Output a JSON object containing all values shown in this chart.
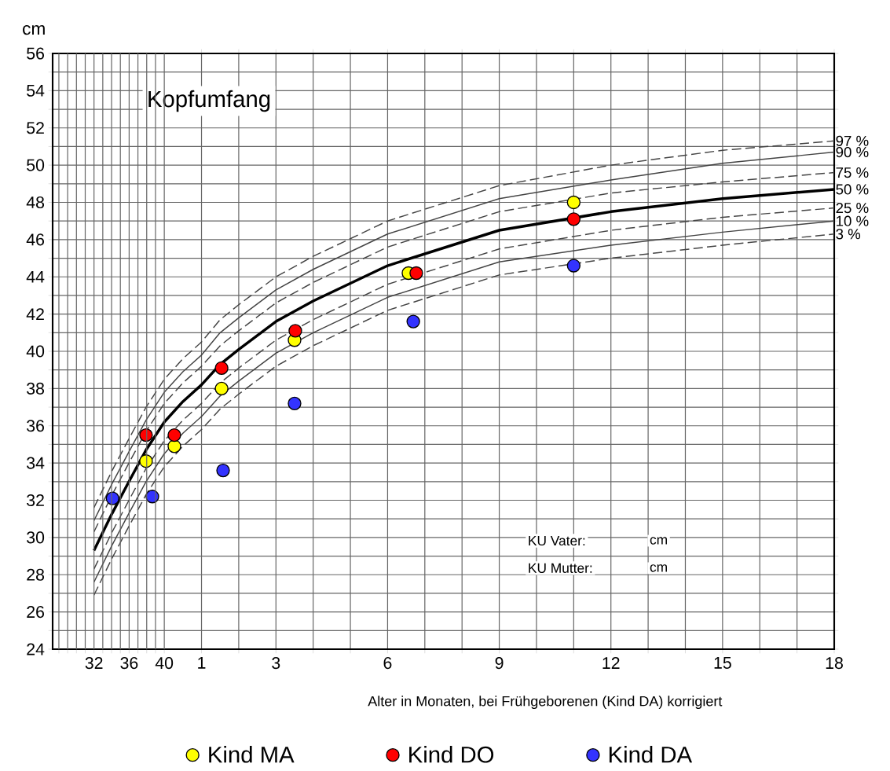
{
  "chart_data": {
    "type": "line",
    "title": "Kopfumfang",
    "ylabel": "cm",
    "xlabel": "Alter in Monaten, bei Frühgeborenen (Kind DA) korrigiert",
    "annotations": [
      "KU Vater:",
      "KU Mutter:",
      "cm",
      "cm"
    ],
    "x": [
      -1.89,
      -1.4,
      -0.95,
      -0.49,
      0,
      0.5,
      1,
      1.5,
      2,
      3,
      4,
      6,
      9,
      12,
      15,
      18
    ],
    "series": [
      {
        "name": "97 %",
        "color": "#444444",
        "line_style": "dashed",
        "marker": "none",
        "values": [
          31.6,
          33.6,
          35.3,
          37.0,
          38.5,
          39.6,
          40.5,
          41.7,
          42.5,
          44.0,
          45.1,
          47.0,
          48.9,
          50.0,
          50.8,
          51.3
        ]
      },
      {
        "name": "90 %",
        "color": "#444444",
        "line_style": "solid",
        "marker": "none",
        "values": [
          30.9,
          32.9,
          34.6,
          36.3,
          37.8,
          38.9,
          39.8,
          41.0,
          41.8,
          43.3,
          44.4,
          46.3,
          48.2,
          49.2,
          50.1,
          50.7
        ]
      },
      {
        "name": "75 %",
        "color": "#444444",
        "line_style": "dashed",
        "marker": "none",
        "values": [
          30.3,
          32.3,
          34.0,
          35.7,
          37.2,
          38.3,
          39.2,
          40.3,
          41.1,
          42.6,
          43.7,
          45.6,
          47.5,
          48.5,
          49.1,
          49.6
        ]
      },
      {
        "name": "50 %",
        "color": "#000000",
        "line_style": "solid",
        "marker": "none",
        "values": [
          29.3,
          31.3,
          33.0,
          34.7,
          36.2,
          37.3,
          38.2,
          39.3,
          40.1,
          41.6,
          42.7,
          44.6,
          46.5,
          47.5,
          48.2,
          48.7
        ]
      },
      {
        "name": "25 %",
        "color": "#444444",
        "line_style": "dashed",
        "marker": "none",
        "values": [
          28.3,
          30.3,
          32.0,
          33.7,
          35.2,
          36.3,
          37.2,
          38.3,
          39.1,
          40.6,
          41.7,
          43.6,
          45.5,
          46.5,
          47.2,
          47.7
        ]
      },
      {
        "name": "10 %",
        "color": "#444444",
        "line_style": "solid",
        "marker": "none",
        "values": [
          27.6,
          29.6,
          31.3,
          33.0,
          34.5,
          35.6,
          36.5,
          37.6,
          38.4,
          39.9,
          41.0,
          42.9,
          44.8,
          45.7,
          46.4,
          47.0
        ]
      },
      {
        "name": "3 %",
        "color": "#444444",
        "line_style": "dashed",
        "marker": "none",
        "values": [
          26.9,
          28.9,
          30.6,
          32.3,
          33.8,
          34.9,
          35.8,
          36.9,
          37.7,
          39.2,
          40.3,
          42.2,
          44.1,
          45.0,
          45.7,
          46.3
        ]
      },
      {
        "name": "Kind MA",
        "type": "scatter",
        "marker": "circle",
        "color": "#ffff00",
        "x": [
          -0.49,
          0.27,
          1.54,
          3.5,
          6.56,
          11.0
        ],
        "values": [
          34.1,
          34.9,
          38.0,
          40.6,
          44.2,
          48.0
        ]
      },
      {
        "name": "Kind DO",
        "type": "scatter",
        "marker": "circle",
        "color": "#ff0000",
        "x": [
          -0.49,
          0.27,
          1.54,
          3.52,
          6.77,
          11.0
        ],
        "values": [
          35.5,
          35.5,
          39.1,
          41.1,
          44.2,
          47.1
        ]
      },
      {
        "name": "Kind DA",
        "type": "scatter",
        "marker": "circle",
        "color": "#3333ff",
        "x": [
          -1.39,
          -0.32,
          1.58,
          3.5,
          6.69,
          11.0
        ],
        "values": [
          32.1,
          32.2,
          33.6,
          37.2,
          41.6,
          44.6
        ]
      }
    ],
    "xlim": [
      -3,
      18
    ],
    "x2lim": [
      27.29,
      116.27
    ],
    "x2ticks": [
      {
        "value": 28,
        "label": null
      },
      {
        "value": 29,
        "label": null
      },
      {
        "value": 30,
        "label": null
      },
      {
        "value": 31,
        "label": null
      },
      32,
      {
        "value": 33,
        "label": null
      },
      {
        "value": 34,
        "label": null
      },
      {
        "value": 35,
        "label": null
      },
      36,
      {
        "value": 37,
        "label": null
      },
      {
        "value": 38,
        "label": null
      },
      {
        "value": 39,
        "label": null
      },
      40
    ],
    "xticks": [
      1,
      {
        "value": 2,
        "label": null
      },
      3,
      {
        "value": 4,
        "label": null
      },
      {
        "value": 5,
        "label": null
      },
      6,
      {
        "value": 7,
        "label": null
      },
      {
        "value": 8,
        "label": null
      },
      9,
      {
        "value": 10,
        "label": null
      },
      {
        "value": 11,
        "label": null
      },
      12,
      {
        "value": 13,
        "label": null
      },
      {
        "value": 14,
        "label": null
      },
      15,
      {
        "value": 16,
        "label": null
      },
      {
        "value": 17,
        "label": null
      },
      18
    ],
    "ylim": [
      24,
      56
    ],
    "yticks": [
      24,
      {
        "value": 25,
        "label": null
      },
      26,
      {
        "value": 27,
        "label": null
      },
      28,
      {
        "value": 29,
        "label": null
      },
      30,
      {
        "value": 31,
        "label": null
      },
      32,
      {
        "value": 33,
        "label": null
      },
      34,
      {
        "value": 35,
        "label": null
      },
      36,
      {
        "value": 37,
        "label": null
      },
      38,
      {
        "value": 39,
        "label": null
      },
      40,
      {
        "value": 41,
        "label": null
      },
      42,
      {
        "value": 43,
        "label": null
      },
      44,
      {
        "value": 45,
        "label": null
      },
      46,
      {
        "value": 47,
        "label": null
      },
      48,
      {
        "value": 49,
        "label": null
      },
      50,
      {
        "value": 51,
        "label": null
      },
      52,
      {
        "value": 53,
        "label": null
      },
      54,
      {
        "value": 55,
        "label": null
      },
      56
    ],
    "grid": true,
    "legend": "bottom"
  }
}
